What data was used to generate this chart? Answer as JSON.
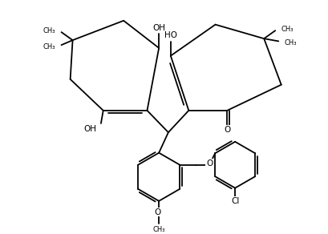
{
  "bg_color": "#ffffff",
  "bond_color": "#000000",
  "text_color": "#000000",
  "line_width": 1.3,
  "font_size": 7.5,
  "figsize": [
    4.1,
    2.92
  ],
  "dpi": 100,
  "xlim": [
    0,
    10
  ],
  "ylim": [
    0,
    7.1
  ]
}
